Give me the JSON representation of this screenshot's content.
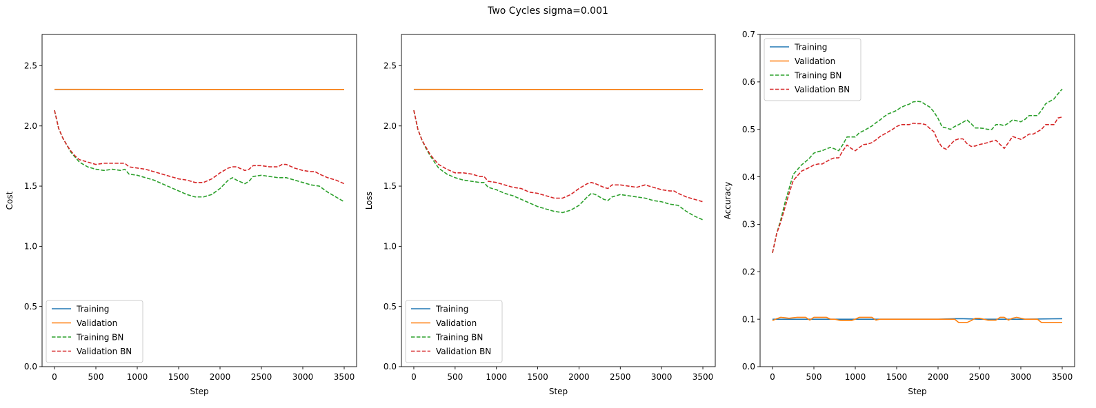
{
  "figure": {
    "title": "Two Cycles sigma=0.001"
  },
  "colors": {
    "training": "#1f77b4",
    "validation": "#ff7f0e",
    "training_bn": "#2ca02c",
    "validation_bn": "#d62728"
  },
  "chart_data": [
    {
      "type": "line",
      "xlabel": "Step",
      "ylabel": "Cost",
      "xlim": [
        -150,
        3650
      ],
      "ylim": [
        0,
        2.76
      ],
      "xticks": [
        0,
        500,
        1000,
        1500,
        2000,
        2500,
        3000,
        3500
      ],
      "yticks": [
        0.0,
        0.5,
        1.0,
        1.5,
        2.0,
        2.5
      ],
      "ytick_format": 1,
      "legend": "lower-left",
      "grid": false,
      "series": [
        {
          "name": "Training",
          "style": "solid",
          "color": "#1f77b4",
          "x": [
            0,
            3500
          ],
          "y": [
            2.303,
            2.303
          ]
        },
        {
          "name": "Validation",
          "style": "solid",
          "color": "#ff7f0e",
          "x": [
            0,
            1000,
            2000,
            3500
          ],
          "y": [
            2.304,
            2.303,
            2.303,
            2.303
          ]
        },
        {
          "name": "Training BN",
          "style": "dashed",
          "color": "#2ca02c",
          "x": [
            0,
            50,
            100,
            150,
            200,
            250,
            300,
            400,
            500,
            600,
            700,
            800,
            850,
            900,
            1000,
            1100,
            1200,
            1300,
            1400,
            1500,
            1600,
            1700,
            1800,
            1900,
            2000,
            2100,
            2150,
            2200,
            2300,
            2350,
            2400,
            2500,
            2600,
            2700,
            2800,
            2900,
            3000,
            3100,
            3200,
            3300,
            3400,
            3500
          ],
          "y": [
            2.13,
            1.98,
            1.9,
            1.84,
            1.78,
            1.74,
            1.7,
            1.66,
            1.64,
            1.63,
            1.64,
            1.63,
            1.64,
            1.6,
            1.59,
            1.57,
            1.55,
            1.52,
            1.49,
            1.46,
            1.43,
            1.41,
            1.41,
            1.43,
            1.48,
            1.55,
            1.57,
            1.55,
            1.52,
            1.54,
            1.58,
            1.59,
            1.58,
            1.57,
            1.57,
            1.55,
            1.53,
            1.51,
            1.5,
            1.45,
            1.41,
            1.37
          ]
        },
        {
          "name": "Validation BN",
          "style": "dashed",
          "color": "#d62728",
          "x": [
            0,
            50,
            100,
            150,
            200,
            250,
            300,
            400,
            500,
            600,
            700,
            800,
            850,
            900,
            1000,
            1100,
            1200,
            1300,
            1400,
            1500,
            1600,
            1700,
            1800,
            1900,
            2000,
            2100,
            2150,
            2200,
            2300,
            2350,
            2400,
            2500,
            2600,
            2700,
            2750,
            2800,
            2900,
            3000,
            3100,
            3150,
            3200,
            3300,
            3400,
            3500
          ],
          "y": [
            2.13,
            1.98,
            1.9,
            1.84,
            1.79,
            1.75,
            1.72,
            1.7,
            1.68,
            1.69,
            1.69,
            1.69,
            1.69,
            1.66,
            1.65,
            1.64,
            1.62,
            1.6,
            1.58,
            1.56,
            1.55,
            1.53,
            1.53,
            1.56,
            1.61,
            1.65,
            1.66,
            1.66,
            1.63,
            1.64,
            1.67,
            1.67,
            1.66,
            1.66,
            1.68,
            1.68,
            1.65,
            1.63,
            1.62,
            1.62,
            1.6,
            1.57,
            1.55,
            1.52
          ]
        }
      ]
    },
    {
      "type": "line",
      "xlabel": "Step",
      "ylabel": "Loss",
      "xlim": [
        -150,
        3650
      ],
      "ylim": [
        0,
        2.76
      ],
      "xticks": [
        0,
        500,
        1000,
        1500,
        2000,
        2500,
        3000,
        3500
      ],
      "yticks": [
        0.0,
        0.5,
        1.0,
        1.5,
        2.0,
        2.5
      ],
      "ytick_format": 1,
      "legend": "lower-left",
      "grid": false,
      "series": [
        {
          "name": "Training",
          "style": "solid",
          "color": "#1f77b4",
          "x": [
            0,
            3500
          ],
          "y": [
            2.303,
            2.303
          ]
        },
        {
          "name": "Validation",
          "style": "solid",
          "color": "#ff7f0e",
          "x": [
            0,
            1000,
            2000,
            3500
          ],
          "y": [
            2.304,
            2.303,
            2.303,
            2.303
          ]
        },
        {
          "name": "Training BN",
          "style": "dashed",
          "color": "#2ca02c",
          "x": [
            0,
            50,
            100,
            150,
            200,
            250,
            300,
            400,
            500,
            600,
            700,
            800,
            850,
            900,
            1000,
            1100,
            1200,
            1300,
            1400,
            1500,
            1600,
            1700,
            1800,
            1900,
            2000,
            2100,
            2150,
            2200,
            2300,
            2350,
            2400,
            2500,
            2600,
            2700,
            2800,
            2900,
            3000,
            3100,
            3200,
            3300,
            3400,
            3500
          ],
          "y": [
            2.13,
            1.97,
            1.88,
            1.81,
            1.75,
            1.7,
            1.65,
            1.6,
            1.57,
            1.55,
            1.54,
            1.53,
            1.53,
            1.49,
            1.47,
            1.44,
            1.42,
            1.39,
            1.36,
            1.33,
            1.31,
            1.29,
            1.28,
            1.3,
            1.34,
            1.41,
            1.44,
            1.43,
            1.39,
            1.38,
            1.41,
            1.43,
            1.42,
            1.41,
            1.4,
            1.38,
            1.37,
            1.35,
            1.34,
            1.29,
            1.25,
            1.22
          ]
        },
        {
          "name": "Validation BN",
          "style": "dashed",
          "color": "#d62728",
          "x": [
            0,
            50,
            100,
            150,
            200,
            250,
            300,
            400,
            500,
            600,
            700,
            800,
            850,
            900,
            1000,
            1100,
            1200,
            1300,
            1400,
            1500,
            1600,
            1700,
            1800,
            1900,
            2000,
            2100,
            2150,
            2200,
            2300,
            2350,
            2400,
            2500,
            2600,
            2700,
            2750,
            2800,
            2900,
            3000,
            3100,
            3150,
            3200,
            3300,
            3400,
            3500
          ],
          "y": [
            2.13,
            1.97,
            1.88,
            1.82,
            1.76,
            1.72,
            1.68,
            1.64,
            1.61,
            1.61,
            1.6,
            1.58,
            1.58,
            1.54,
            1.53,
            1.51,
            1.49,
            1.48,
            1.45,
            1.44,
            1.42,
            1.4,
            1.4,
            1.43,
            1.48,
            1.52,
            1.53,
            1.52,
            1.49,
            1.48,
            1.51,
            1.51,
            1.5,
            1.49,
            1.5,
            1.51,
            1.49,
            1.47,
            1.46,
            1.46,
            1.44,
            1.41,
            1.39,
            1.37
          ]
        }
      ]
    },
    {
      "type": "line",
      "xlabel": "Step",
      "ylabel": "Accuracy",
      "xlim": [
        -150,
        3650
      ],
      "ylim": [
        0,
        0.7
      ],
      "xticks": [
        0,
        500,
        1000,
        1500,
        2000,
        2500,
        3000,
        3500
      ],
      "yticks": [
        0.0,
        0.1,
        0.2,
        0.3,
        0.4,
        0.5,
        0.6,
        0.7
      ],
      "ytick_format": 1,
      "legend": "upper-left",
      "grid": false,
      "series": [
        {
          "name": "Training",
          "style": "solid",
          "color": "#1f77b4",
          "x": [
            0,
            500,
            1000,
            1500,
            2000,
            2200,
            2300,
            2500,
            3000,
            3500
          ],
          "y": [
            0.1,
            0.1,
            0.1,
            0.1,
            0.1,
            0.101,
            0.101,
            0.1,
            0.1,
            0.101
          ]
        },
        {
          "name": "Validation",
          "style": "solid",
          "color": "#ff7f0e",
          "x": [
            0,
            50,
            100,
            150,
            200,
            250,
            300,
            350,
            400,
            450,
            500,
            550,
            600,
            650,
            700,
            750,
            800,
            850,
            900,
            950,
            1000,
            1050,
            1100,
            1150,
            1200,
            1250,
            1300,
            1350,
            1400,
            1500,
            1600,
            1700,
            1800,
            1900,
            2000,
            2100,
            2150,
            2200,
            2250,
            2300,
            2350,
            2400,
            2450,
            2500,
            2550,
            2600,
            2650,
            2700,
            2750,
            2800,
            2850,
            2900,
            2950,
            3000,
            3050,
            3100,
            3150,
            3200,
            3250,
            3300,
            3350,
            3400,
            3450,
            3500
          ],
          "y": [
            0.097,
            0.101,
            0.104,
            0.103,
            0.102,
            0.103,
            0.104,
            0.104,
            0.104,
            0.098,
            0.104,
            0.104,
            0.104,
            0.104,
            0.1,
            0.1,
            0.098,
            0.097,
            0.097,
            0.097,
            0.1,
            0.104,
            0.104,
            0.104,
            0.104,
            0.098,
            0.1,
            0.1,
            0.1,
            0.1,
            0.1,
            0.1,
            0.1,
            0.1,
            0.1,
            0.1,
            0.1,
            0.1,
            0.093,
            0.093,
            0.093,
            0.097,
            0.102,
            0.102,
            0.1,
            0.098,
            0.098,
            0.098,
            0.104,
            0.104,
            0.098,
            0.102,
            0.104,
            0.102,
            0.1,
            0.1,
            0.1,
            0.1,
            0.093,
            0.093,
            0.093,
            0.093,
            0.093,
            0.093
          ]
        },
        {
          "name": "Training BN",
          "style": "dashed",
          "color": "#2ca02c",
          "x": [
            0,
            50,
            100,
            150,
            200,
            250,
            300,
            350,
            400,
            450,
            500,
            550,
            600,
            650,
            700,
            750,
            800,
            850,
            900,
            950,
            1000,
            1050,
            1100,
            1150,
            1200,
            1250,
            1300,
            1350,
            1400,
            1450,
            1500,
            1550,
            1600,
            1650,
            1700,
            1750,
            1800,
            1850,
            1900,
            1950,
            2000,
            2050,
            2100,
            2150,
            2200,
            2250,
            2300,
            2350,
            2400,
            2450,
            2500,
            2550,
            2600,
            2650,
            2700,
            2750,
            2800,
            2850,
            2900,
            2950,
            3000,
            3050,
            3100,
            3150,
            3200,
            3250,
            3300,
            3350,
            3400,
            3450,
            3500
          ],
          "y": [
            0.24,
            0.28,
            0.31,
            0.345,
            0.375,
            0.405,
            0.415,
            0.425,
            0.432,
            0.44,
            0.45,
            0.453,
            0.455,
            0.459,
            0.462,
            0.459,
            0.455,
            0.468,
            0.484,
            0.484,
            0.484,
            0.493,
            0.497,
            0.502,
            0.507,
            0.514,
            0.52,
            0.527,
            0.533,
            0.536,
            0.54,
            0.546,
            0.55,
            0.553,
            0.558,
            0.559,
            0.558,
            0.552,
            0.547,
            0.537,
            0.523,
            0.505,
            0.503,
            0.5,
            0.506,
            0.51,
            0.515,
            0.52,
            0.512,
            0.503,
            0.503,
            0.502,
            0.5,
            0.5,
            0.51,
            0.51,
            0.508,
            0.513,
            0.52,
            0.518,
            0.516,
            0.521,
            0.529,
            0.529,
            0.529,
            0.54,
            0.554,
            0.559,
            0.564,
            0.575,
            0.585
          ]
        },
        {
          "name": "Validation BN",
          "style": "dashed",
          "color": "#d62728",
          "x": [
            0,
            50,
            100,
            150,
            200,
            250,
            300,
            350,
            400,
            450,
            500,
            550,
            600,
            650,
            700,
            750,
            800,
            850,
            900,
            950,
            1000,
            1050,
            1100,
            1150,
            1200,
            1250,
            1300,
            1350,
            1400,
            1450,
            1500,
            1550,
            1600,
            1650,
            1700,
            1750,
            1800,
            1850,
            1900,
            1950,
            2000,
            2050,
            2100,
            2150,
            2200,
            2250,
            2300,
            2350,
            2400,
            2450,
            2500,
            2550,
            2600,
            2650,
            2700,
            2750,
            2800,
            2850,
            2900,
            2950,
            3000,
            3050,
            3100,
            3150,
            3200,
            3250,
            3300,
            3350,
            3400,
            3450,
            3500
          ],
          "y": [
            0.24,
            0.28,
            0.305,
            0.335,
            0.365,
            0.392,
            0.402,
            0.412,
            0.416,
            0.42,
            0.425,
            0.427,
            0.427,
            0.432,
            0.437,
            0.44,
            0.44,
            0.455,
            0.467,
            0.46,
            0.455,
            0.462,
            0.468,
            0.469,
            0.472,
            0.478,
            0.485,
            0.49,
            0.495,
            0.5,
            0.506,
            0.51,
            0.51,
            0.51,
            0.513,
            0.512,
            0.512,
            0.51,
            0.502,
            0.495,
            0.475,
            0.462,
            0.458,
            0.468,
            0.477,
            0.48,
            0.48,
            0.47,
            0.464,
            0.465,
            0.468,
            0.47,
            0.472,
            0.475,
            0.477,
            0.468,
            0.46,
            0.472,
            0.485,
            0.482,
            0.479,
            0.484,
            0.49,
            0.49,
            0.495,
            0.5,
            0.51,
            0.51,
            0.51,
            0.524,
            0.526
          ]
        }
      ]
    }
  ]
}
